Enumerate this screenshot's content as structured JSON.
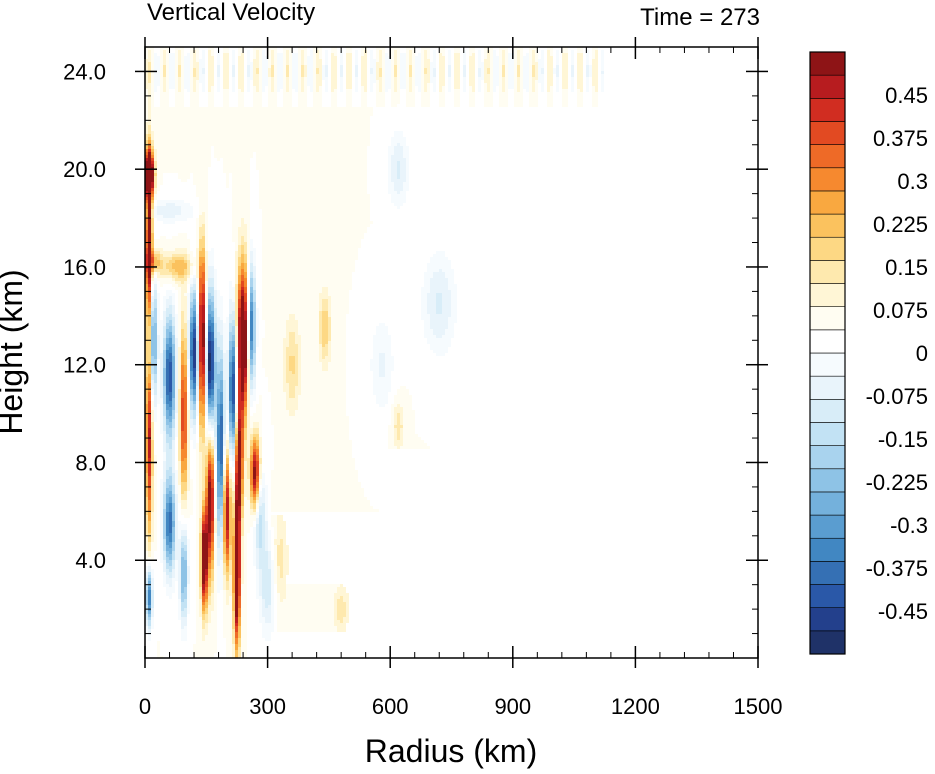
{
  "chart_data": {
    "type": "heatmap",
    "title": "Vertical Velocity",
    "time_label": "Time = 273",
    "xlabel": "Radius (km)",
    "ylabel": "Height (km)",
    "xlim": [
      0,
      1500
    ],
    "ylim": [
      0,
      25
    ],
    "x_ticks": [
      {
        "value": 0,
        "label": "0"
      },
      {
        "value": 300,
        "label": "300"
      },
      {
        "value": 600,
        "label": "600"
      },
      {
        "value": 900,
        "label": "900"
      },
      {
        "value": 1200,
        "label": "1200"
      },
      {
        "value": 1500,
        "label": "1500"
      }
    ],
    "y_ticks": [
      {
        "value": 4,
        "label": "4.0"
      },
      {
        "value": 8,
        "label": "8.0"
      },
      {
        "value": 12,
        "label": "12.0"
      },
      {
        "value": 16,
        "label": "16.0"
      },
      {
        "value": 20,
        "label": "20.0"
      },
      {
        "value": 24,
        "label": "24.0"
      }
    ],
    "colorbar": {
      "min": -0.525,
      "max": 0.525,
      "step": 0.0375,
      "labels": [
        {
          "value": 0.45,
          "label": "0.45"
        },
        {
          "value": 0.375,
          "label": "0.375"
        },
        {
          "value": 0.3,
          "label": "0.3"
        },
        {
          "value": 0.225,
          "label": "0.225"
        },
        {
          "value": 0.15,
          "label": "0.15"
        },
        {
          "value": 0.075,
          "label": "0.075"
        },
        {
          "value": 0,
          "label": "0"
        },
        {
          "value": -0.075,
          "label": "-0.075"
        },
        {
          "value": -0.15,
          "label": "-0.15"
        },
        {
          "value": -0.225,
          "label": "-0.225"
        },
        {
          "value": -0.3,
          "label": "-0.3"
        },
        {
          "value": -0.375,
          "label": "-0.375"
        },
        {
          "value": -0.45,
          "label": "-0.45"
        }
      ],
      "colors": [
        "#1f3268",
        "#23408c",
        "#2a58a8",
        "#3570b4",
        "#4187c2",
        "#5a9dd0",
        "#74b1dc",
        "#8ec3e6",
        "#a9d3ee",
        "#c2e2f4",
        "#d8edf8",
        "#e9f4fb",
        "#f6fbfe",
        "#ffffff",
        "#fffdf2",
        "#fff6d6",
        "#fee9ae",
        "#fdd884",
        "#fbc25e",
        "#f9a840",
        "#f6892f",
        "#ee6a27",
        "#e24a22",
        "#d12d21",
        "#b71c1f",
        "#8e1416"
      ]
    },
    "features": [
      {
        "r": 10,
        "z": 17.0,
        "w": 0.5,
        "dr": 8,
        "dz": 3.5
      },
      {
        "r": 10,
        "z": 19.8,
        "w": 0.6,
        "dr": 12,
        "dz": 0.9
      },
      {
        "r": 20,
        "z": 16.2,
        "w": 0.2,
        "dr": 20,
        "dz": 0.5
      },
      {
        "r": 80,
        "z": 16.0,
        "w": 0.18,
        "dr": 40,
        "dz": 0.6
      },
      {
        "r": 60,
        "z": 18.3,
        "w": -0.1,
        "dr": 60,
        "dz": 0.5
      },
      {
        "r": 20,
        "z": 13.0,
        "w": -0.35,
        "dr": 10,
        "dz": 2.5
      },
      {
        "r": 10,
        "z": 9.0,
        "w": 0.4,
        "dr": 8,
        "dz": 4.0
      },
      {
        "r": 10,
        "z": 2.5,
        "w": -0.4,
        "dr": 8,
        "dz": 1.2
      },
      {
        "r": 60,
        "z": 11.5,
        "w": -0.45,
        "dr": 15,
        "dz": 2.5
      },
      {
        "r": 60,
        "z": 5.5,
        "w": -0.4,
        "dr": 15,
        "dz": 2.0
      },
      {
        "r": 95,
        "z": 10.0,
        "w": 0.35,
        "dr": 10,
        "dz": 3.5
      },
      {
        "r": 95,
        "z": 3.5,
        "w": -0.3,
        "dr": 10,
        "dz": 2.0
      },
      {
        "r": 120,
        "z": 12.5,
        "w": -0.5,
        "dr": 12,
        "dz": 2.5
      },
      {
        "r": 140,
        "z": 13.0,
        "w": 0.55,
        "dr": 10,
        "dz": 3.5
      },
      {
        "r": 160,
        "z": 12.0,
        "w": -0.55,
        "dr": 12,
        "dz": 3.0
      },
      {
        "r": 160,
        "z": 6.5,
        "w": 0.5,
        "dr": 10,
        "dz": 3.0
      },
      {
        "r": 145,
        "z": 4.0,
        "w": 0.55,
        "dr": 8,
        "dz": 2.0
      },
      {
        "r": 185,
        "z": 8.5,
        "w": -0.45,
        "dr": 10,
        "dz": 4.0
      },
      {
        "r": 200,
        "z": 6.0,
        "w": 0.45,
        "dr": 10,
        "dz": 2.5
      },
      {
        "r": 215,
        "z": 11.0,
        "w": -0.5,
        "dr": 10,
        "dz": 3.0
      },
      {
        "r": 225,
        "z": 3.5,
        "w": 0.6,
        "dr": 8,
        "dz": 3.0
      },
      {
        "r": 240,
        "z": 13.0,
        "w": 0.6,
        "dr": 15,
        "dz": 3.0
      },
      {
        "r": 230,
        "z": 8.0,
        "w": 0.45,
        "dr": 10,
        "dz": 2.5
      },
      {
        "r": 260,
        "z": 13.5,
        "w": -0.45,
        "dr": 10,
        "dz": 2.5
      },
      {
        "r": 270,
        "z": 7.5,
        "w": 0.5,
        "dr": 12,
        "dz": 1.5
      },
      {
        "r": 280,
        "z": 6.0,
        "w": -0.2,
        "dr": 15,
        "dz": 2.0
      },
      {
        "r": 300,
        "z": 3.0,
        "w": -0.15,
        "dr": 20,
        "dz": 2.0
      },
      {
        "r": 330,
        "z": 4.0,
        "w": 0.1,
        "dr": 20,
        "dz": 2.0
      },
      {
        "r": 360,
        "z": 12.0,
        "w": 0.12,
        "dr": 20,
        "dz": 2.0
      },
      {
        "r": 440,
        "z": 13.5,
        "w": 0.15,
        "dr": 15,
        "dz": 1.5
      },
      {
        "r": 480,
        "z": 2.0,
        "w": 0.1,
        "dr": 20,
        "dz": 1.0
      },
      {
        "r": 620,
        "z": 20.0,
        "w": -0.12,
        "dr": 25,
        "dz": 1.5
      },
      {
        "r": 720,
        "z": 14.5,
        "w": -0.12,
        "dr": 40,
        "dz": 2.0
      },
      {
        "r": 580,
        "z": 12.0,
        "w": -0.08,
        "dr": 30,
        "dz": 2.0
      },
      {
        "r": 620,
        "z": 9.5,
        "w": 0.1,
        "dr": 15,
        "dz": 1.0
      }
    ],
    "stratosphere_band": {
      "r_max": 1120,
      "z_min": 22.5,
      "z_max": 25.0,
      "w": 0.08
    }
  }
}
